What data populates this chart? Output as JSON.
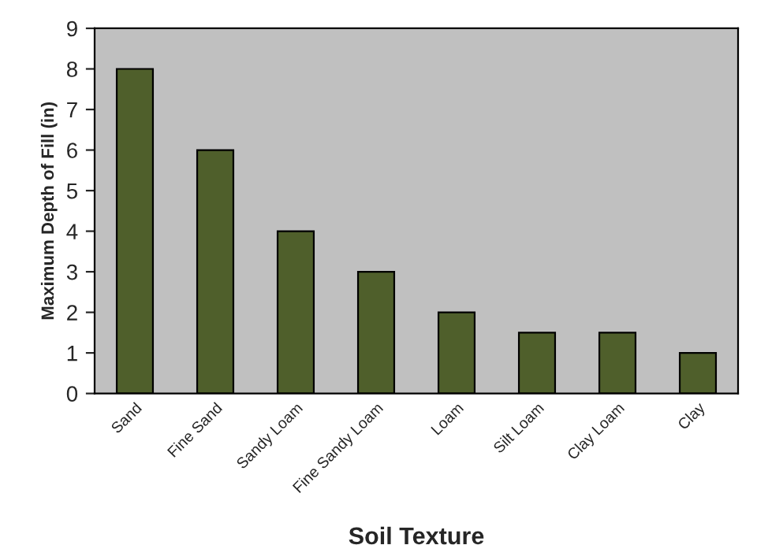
{
  "chart_data": {
    "type": "bar",
    "xlabel": "Soil Texture",
    "ylabel": "Maximum Depth of Fill (in)",
    "categories": [
      "Sand",
      "Fine Sand",
      "Sandy Loam",
      "Fine Sandy Loam",
      "Loam",
      "Silt Loam",
      "Clay Loam",
      "Clay"
    ],
    "values": [
      8,
      6,
      4,
      3,
      2,
      1.5,
      1.5,
      1
    ],
    "color": "#4f5f2b",
    "ylim": [
      0,
      9
    ],
    "yticks": [
      0,
      1,
      2,
      3,
      4,
      5,
      6,
      7,
      8,
      9
    ],
    "grid": false,
    "legend": false
  }
}
